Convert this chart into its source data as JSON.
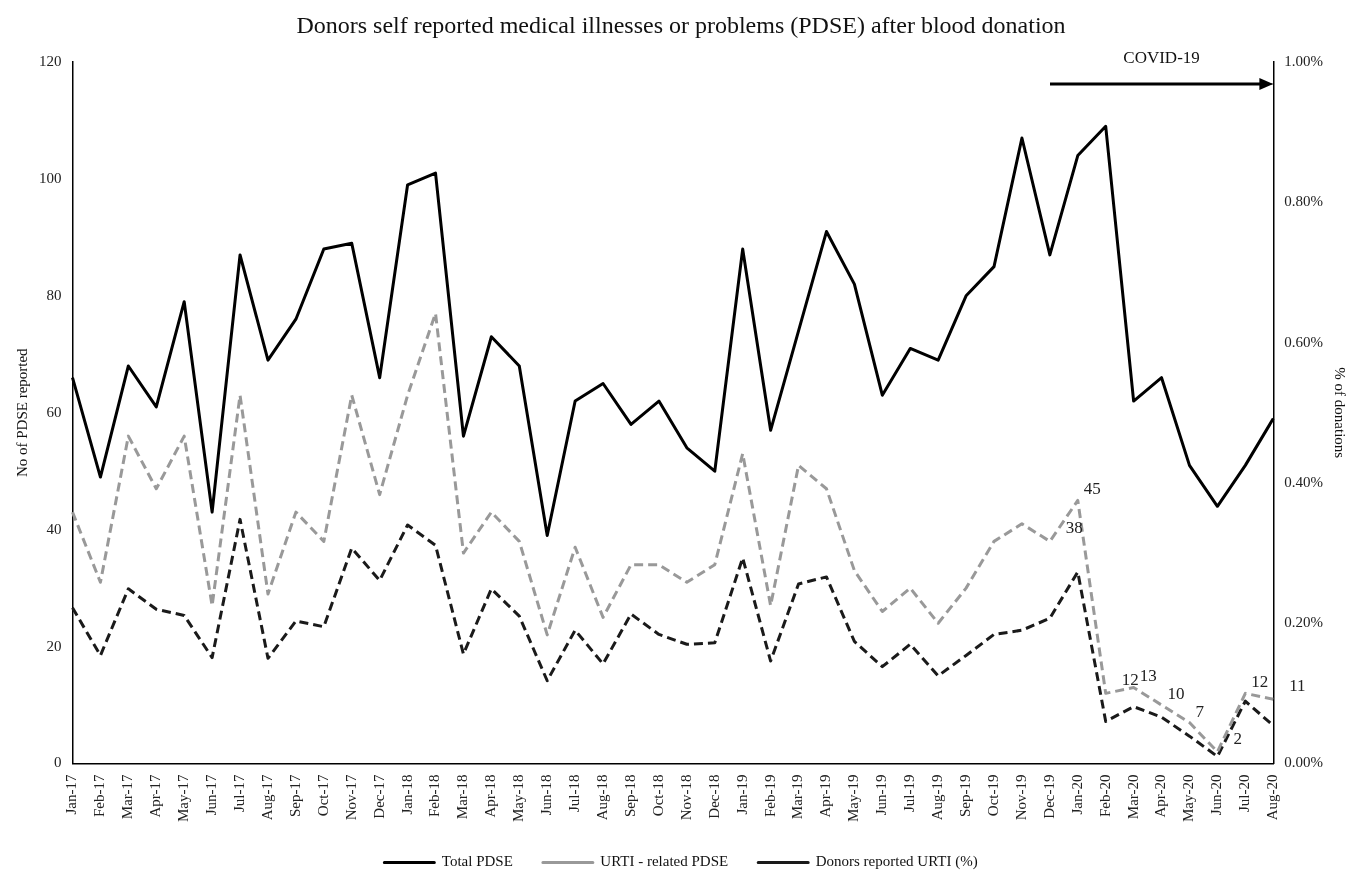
{
  "chart_data": {
    "type": "line",
    "title": "Donors self reported medical illnesses or problems (PDSE) after blood donation",
    "ylabel": "No of PDSE reported",
    "y2label": "% of donations",
    "categories": [
      "Jan-17",
      "Feb-17",
      "Mar-17",
      "Apr-17",
      "May-17",
      "Jun-17",
      "Jul-17",
      "Aug-17",
      "Sep-17",
      "Oct-17",
      "Nov-17",
      "Dec-17",
      "Jan-18",
      "Feb-18",
      "Mar-18",
      "Apr-18",
      "May-18",
      "Jun-18",
      "Jul-18",
      "Aug-18",
      "Sep-18",
      "Oct-18",
      "Nov-18",
      "Dec-18",
      "Jan-19",
      "Feb-19",
      "Mar-19",
      "Apr-19",
      "May-19",
      "Jun-19",
      "Jul-19",
      "Aug-19",
      "Sep-19",
      "Oct-19",
      "Nov-19",
      "Dec-19",
      "Jan-20",
      "Feb-20",
      "Mar-20",
      "Apr-20",
      "May-20",
      "Jun-20",
      "Jul-20",
      "Aug-20"
    ],
    "series": [
      {
        "name": "Total PDSE",
        "color": "#000000",
        "line_style": "solid",
        "values": [
          66,
          49,
          68,
          61,
          79,
          43,
          87,
          69,
          76,
          88,
          89,
          66,
          99,
          101,
          56,
          73,
          68,
          39,
          62,
          65,
          58,
          62,
          54,
          50,
          88,
          57,
          74,
          91,
          82,
          63,
          71,
          69,
          80,
          85,
          107,
          87,
          104,
          109,
          62,
          66,
          51,
          44,
          51,
          59
        ]
      },
      {
        "name": "URTI - related PDSE",
        "color": "#999999",
        "line_style": "dashed",
        "values": [
          43,
          31,
          56,
          47,
          56,
          27,
          63,
          29,
          43,
          38,
          63,
          46,
          63,
          77,
          36,
          43,
          38,
          22,
          37,
          25,
          34,
          34,
          31,
          34,
          53,
          27,
          51,
          47,
          33,
          26,
          30,
          24,
          30,
          38,
          41,
          38,
          45,
          12,
          13,
          10,
          7,
          2,
          12,
          11
        ],
        "value_labels": [
          null,
          null,
          null,
          null,
          null,
          null,
          null,
          null,
          null,
          null,
          null,
          null,
          null,
          null,
          null,
          null,
          null,
          null,
          null,
          null,
          null,
          null,
          null,
          null,
          null,
          null,
          null,
          null,
          null,
          null,
          null,
          null,
          null,
          null,
          null,
          "38",
          "45",
          "12",
          "13",
          "10",
          "7",
          "2",
          "12",
          "11"
        ]
      },
      {
        "name": "Donors reported URTI (%)",
        "color": "#1a1a1a",
        "line_style": "dashed",
        "axis": "y2",
        "values": [
          0.222,
          0.154,
          0.249,
          0.22,
          0.211,
          0.151,
          0.348,
          0.15,
          0.203,
          0.195,
          0.307,
          0.261,
          0.34,
          0.311,
          0.156,
          0.249,
          0.21,
          0.118,
          0.19,
          0.142,
          0.213,
          0.184,
          0.17,
          0.172,
          0.293,
          0.146,
          0.256,
          0.266,
          0.174,
          0.138,
          0.17,
          0.125,
          0.154,
          0.184,
          0.19,
          0.207,
          0.273,
          0.06,
          0.081,
          0.066,
          0.039,
          0.01,
          0.089,
          0.054
        ]
      }
    ],
    "ylim": [
      0,
      120
    ],
    "yticks": [
      0,
      20,
      40,
      60,
      80,
      100,
      120
    ],
    "y2lim": [
      0,
      1
    ],
    "y2ticks": [
      {
        "value": 0,
        "label": "0.00%"
      },
      {
        "value": 0.2,
        "label": "0.20%"
      },
      {
        "value": 0.4,
        "label": "0.40%"
      },
      {
        "value": 0.6,
        "label": "0.60%"
      },
      {
        "value": 0.8,
        "label": "0.80%"
      },
      {
        "value": 1,
        "label": "1.00%"
      }
    ],
    "annotations": [
      "COVID-19"
    ],
    "legend": "bottom",
    "grid": false,
    "marker": "none"
  }
}
